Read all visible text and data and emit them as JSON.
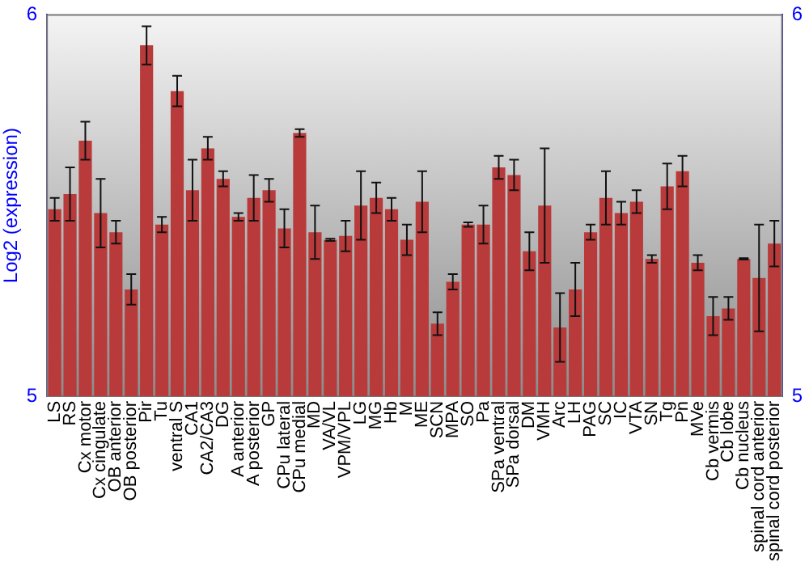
{
  "chart_data": {
    "type": "bar",
    "ylabel": "Log2 (expression)",
    "categories": [
      "LS",
      "RS",
      "Cx motor",
      "Cx cingulate",
      "OB anterior",
      "OB posterior",
      "Pir",
      "Tu",
      "ventral S",
      "CA1",
      "CA2/CA3",
      "DG",
      "A anterior",
      "A posterior",
      "GP",
      "CPu lateral",
      "CPu medial",
      "MD",
      "VA/VL",
      "VPM/VPL",
      "LG",
      "MG",
      "Hb",
      "M",
      "ME",
      "SCN",
      "MPA",
      "SO",
      "Pa",
      "SPa ventral",
      "SPa dorsal",
      "DM",
      "VMH",
      "Arc",
      "LH",
      "PAG",
      "SC",
      "IC",
      "VTA",
      "SN",
      "Tg",
      "Pn",
      "MVe",
      "Cb vermis",
      "Cb lobe",
      "Cb nucleus",
      "spinal cord anterior",
      "spinal cord posterior"
    ],
    "values": [
      5.49,
      5.53,
      5.67,
      5.48,
      5.43,
      5.28,
      5.92,
      5.45,
      5.8,
      5.54,
      5.65,
      5.57,
      5.47,
      5.52,
      5.54,
      5.44,
      5.69,
      5.43,
      5.41,
      5.42,
      5.5,
      5.52,
      5.49,
      5.41,
      5.51,
      5.19,
      5.3,
      5.45,
      5.45,
      5.6,
      5.58,
      5.38,
      5.5,
      5.18,
      5.28,
      5.43,
      5.52,
      5.48,
      5.51,
      5.36,
      5.55,
      5.59,
      5.35,
      5.21,
      5.23,
      5.36,
      5.31,
      5.4
    ],
    "errors": [
      0.03,
      0.07,
      0.05,
      0.09,
      0.03,
      0.04,
      0.05,
      0.02,
      0.04,
      0.08,
      0.03,
      0.02,
      0.01,
      0.06,
      0.03,
      0.05,
      0.01,
      0.07,
      0.003,
      0.04,
      0.09,
      0.04,
      0.03,
      0.04,
      0.08,
      0.03,
      0.02,
      0.006,
      0.05,
      0.03,
      0.04,
      0.05,
      0.15,
      0.09,
      0.07,
      0.02,
      0.07,
      0.03,
      0.03,
      0.01,
      0.06,
      0.04,
      0.02,
      0.05,
      0.03,
      0.002,
      0.14,
      0.06
    ],
    "color": "#b83a3a",
    "ylim": [
      5,
      6
    ],
    "yticks": [
      5,
      6
    ],
    "y2lim": [
      5,
      6
    ],
    "y2ticks": [
      5,
      6
    ],
    "grid": false,
    "legend": false
  }
}
